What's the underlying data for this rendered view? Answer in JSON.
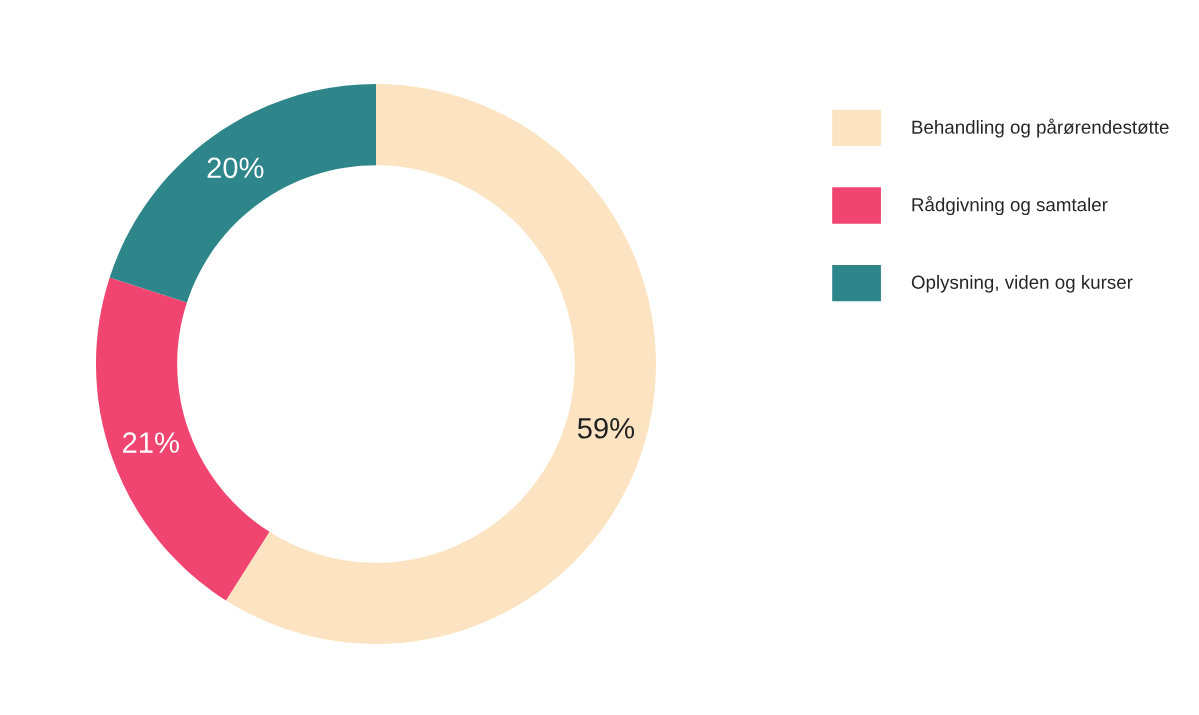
{
  "chart_data": {
    "type": "donut",
    "categories": [
      "Behandling og pårørendestøtte",
      "Rådgivning og samtaler",
      "Oplysning, viden og kurser"
    ],
    "values": [
      59,
      21,
      20
    ],
    "colors": [
      "#fce4c2",
      "#ef4570",
      "#2e868b"
    ],
    "value_labels": [
      "59%",
      "21%",
      "20%"
    ],
    "legend": "right"
  }
}
